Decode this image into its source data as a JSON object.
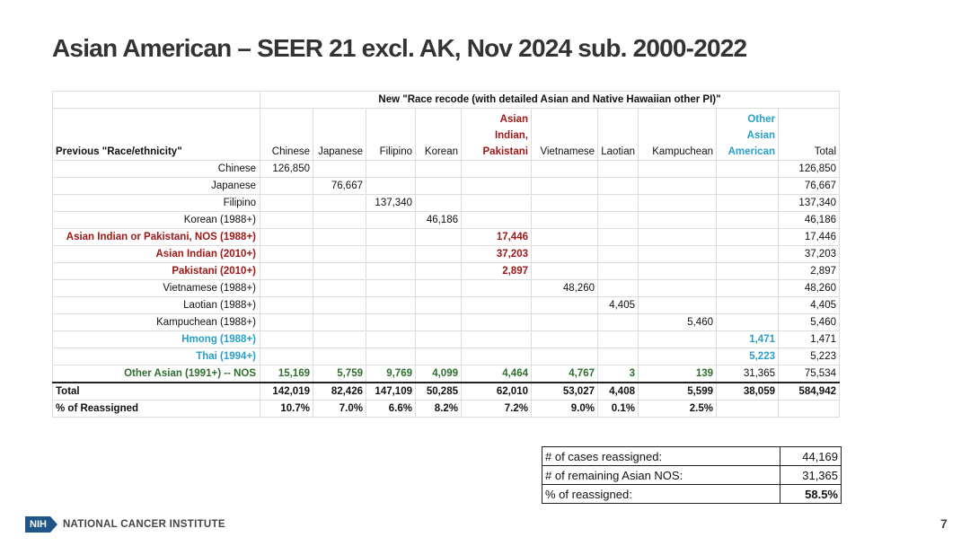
{
  "slide": {
    "title": "Asian American – SEER 21 excl. AK, Nov 2024 sub. 2000-2022",
    "page_number": "7"
  },
  "footer": {
    "logo_badge": "NIH",
    "institute": "NATIONAL CANCER INSTITUTE"
  },
  "table": {
    "group_header": "New \"Race recode (with detailed Asian and Native Hawaiian other PI)\"",
    "row_header": "Previous \"Race/ethnicity\"",
    "columns": [
      "Chinese",
      "Japanese",
      "Filipino",
      "Korean",
      "Asian Indian, Pakistani",
      "Vietnamese",
      "Laotian",
      "Kampuchean",
      "Other Asian American",
      "Total"
    ],
    "col_lines": [
      [
        "Chinese"
      ],
      [
        "Japanese"
      ],
      [
        "Filipino"
      ],
      [
        "Korean"
      ],
      [
        "Asian",
        "Indian,",
        "Pakistani"
      ],
      [
        "Vietnamese"
      ],
      [
        "Laotian"
      ],
      [
        "Kampuchean"
      ],
      [
        "Other",
        "Asian",
        "American"
      ],
      [
        "Total"
      ]
    ],
    "col_styles": [
      "",
      "",
      "",
      "",
      "red",
      "",
      "",
      "",
      "blue",
      ""
    ],
    "rows": [
      {
        "label": "Chinese",
        "style": "",
        "cells": [
          "126,850",
          "",
          "",
          "",
          "",
          "",
          "",
          "",
          "",
          "126,850"
        ]
      },
      {
        "label": "Japanese",
        "style": "",
        "cells": [
          "",
          "76,667",
          "",
          "",
          "",
          "",
          "",
          "",
          "",
          "76,667"
        ]
      },
      {
        "label": "Filipino",
        "style": "",
        "cells": [
          "",
          "",
          "137,340",
          "",
          "",
          "",
          "",
          "",
          "",
          "137,340"
        ]
      },
      {
        "label": "Korean (1988+)",
        "style": "",
        "cells": [
          "",
          "",
          "",
          "46,186",
          "",
          "",
          "",
          "",
          "",
          "46,186"
        ]
      },
      {
        "label": "Asian Indian or Pakistani, NOS (1988+)",
        "style": "red",
        "cells": [
          "",
          "",
          "",
          "",
          "17,446",
          "",
          "",
          "",
          "",
          "17,446"
        ]
      },
      {
        "label": "Asian Indian (2010+)",
        "style": "red",
        "cells": [
          "",
          "",
          "",
          "",
          "37,203",
          "",
          "",
          "",
          "",
          "37,203"
        ]
      },
      {
        "label": "Pakistani (2010+)",
        "style": "red",
        "cells": [
          "",
          "",
          "",
          "",
          "2,897",
          "",
          "",
          "",
          "",
          "2,897"
        ]
      },
      {
        "label": "Vietnamese (1988+)",
        "style": "",
        "cells": [
          "",
          "",
          "",
          "",
          "",
          "48,260",
          "",
          "",
          "",
          "48,260"
        ]
      },
      {
        "label": "Laotian (1988+)",
        "style": "",
        "cells": [
          "",
          "",
          "",
          "",
          "",
          "",
          "4,405",
          "",
          "",
          "4,405"
        ]
      },
      {
        "label": "Kampuchean (1988+)",
        "style": "",
        "cells": [
          "",
          "",
          "",
          "",
          "",
          "",
          "",
          "5,460",
          "",
          "5,460"
        ]
      },
      {
        "label": "Hmong (1988+)",
        "style": "blue",
        "cells": [
          "",
          "",
          "",
          "",
          "",
          "",
          "",
          "",
          "1,471",
          "1,471"
        ]
      },
      {
        "label": "Thai (1994+)",
        "style": "blue",
        "cells": [
          "",
          "",
          "",
          "",
          "",
          "",
          "",
          "",
          "5,223",
          "5,223"
        ]
      },
      {
        "label": "Other Asian (1991+) -- NOS",
        "style": "green",
        "cells": [
          "15,169",
          "5,759",
          "9,769",
          "4,099",
          "4,464",
          "4,767",
          "3",
          "139",
          "31,365",
          "75,534"
        ]
      }
    ],
    "total_row": {
      "label": "Total",
      "cells": [
        "142,019",
        "82,426",
        "147,109",
        "50,285",
        "62,010",
        "53,027",
        "4,408",
        "5,599",
        "38,059",
        "584,942"
      ]
    },
    "pct_row": {
      "label": "% of Reassigned",
      "cells": [
        "10.7%",
        "7.0%",
        "6.6%",
        "8.2%",
        "7.2%",
        "9.0%",
        "0.1%",
        "2.5%",
        "",
        ""
      ]
    }
  },
  "summary": [
    {
      "label": "# of cases reassigned:",
      "value": "44,169",
      "bold": false
    },
    {
      "label": "# of remaining Asian NOS:",
      "value": "31,365",
      "bold": false
    },
    {
      "label": "% of reassigned:",
      "value": "58.5%",
      "bold": true
    }
  ],
  "colors": {
    "red": "#a01818",
    "blue": "#2aa0c8",
    "green": "#2f6e2f",
    "nih_blue": "#20558a"
  }
}
